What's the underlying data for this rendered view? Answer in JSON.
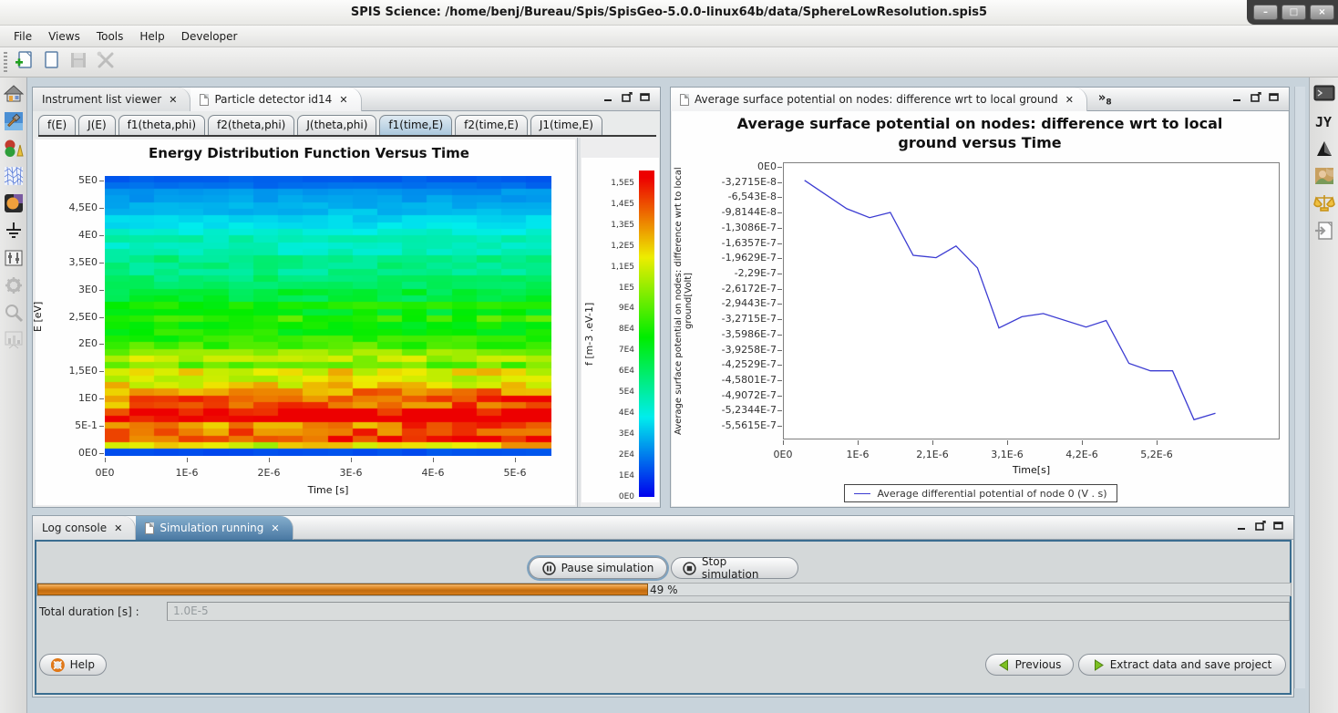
{
  "window": {
    "title": "SPIS Science: /home/benj/Bureau/Spis/SpisGeo-5.0.0-linux64b/data/SphereLowResolution.spis5"
  },
  "glyphs": {
    "minimize": "–",
    "maximize": "□",
    "close": "×",
    "tab_close": "✕",
    "overflow": "»",
    "overflow_count": "8"
  },
  "menu": {
    "items": [
      "File",
      "Views",
      "Tools",
      "Help",
      "Developer"
    ]
  },
  "main_toolbar": {
    "icons": [
      {
        "name": "new-project-icon",
        "enabled": true
      },
      {
        "name": "open-project-icon",
        "enabled": true
      },
      {
        "name": "save-project-icon",
        "enabled": false
      },
      {
        "name": "preferences-icon",
        "enabled": false
      }
    ]
  },
  "left_toolbar": {
    "icons": [
      {
        "name": "home-icon",
        "enabled": true
      },
      {
        "name": "geometry-editor-icon",
        "enabled": true
      },
      {
        "name": "groups-editor-icon",
        "enabled": true
      },
      {
        "name": "mesh-icon",
        "enabled": true
      },
      {
        "name": "materials-icon",
        "enabled": true
      },
      {
        "name": "electrical-ground-icon",
        "enabled": true
      },
      {
        "name": "global-parameters-icon",
        "enabled": true
      },
      {
        "name": "simulation-gear-icon",
        "enabled": false
      },
      {
        "name": "data-mining-icon",
        "enabled": false
      },
      {
        "name": "results-chart-icon",
        "enabled": false
      }
    ]
  },
  "right_toolbar": {
    "icons": [
      {
        "name": "console-icon",
        "enabled": true
      },
      {
        "name": "jython-icon",
        "enabled": true,
        "label": "JY"
      },
      {
        "name": "run-triangle-icon",
        "enabled": true
      },
      {
        "name": "image-viewer-icon",
        "enabled": true
      },
      {
        "name": "scales-icon",
        "enabled": true
      },
      {
        "name": "export-document-icon",
        "enabled": true
      }
    ]
  },
  "left_panel": {
    "tabs": [
      {
        "label": "Instrument list viewer",
        "active": false,
        "has_icon": false
      },
      {
        "label": "Particle detector id14",
        "active": true,
        "has_icon": true
      }
    ],
    "subtabs": [
      "f(E)",
      "J(E)",
      "f1(theta,phi)",
      "f2(theta,phi)",
      "J(theta,phi)",
      "f1(time,E)",
      "f2(time,E)",
      "J1(time,E)"
    ],
    "active_subtab": "f1(time,E)"
  },
  "right_panel": {
    "tab_label": "Average surface potential on nodes: difference wrt to local ground",
    "title_line1": "Average surface potential on nodes: difference wrt to local",
    "title_line2": "ground versus Time"
  },
  "bottom_panel": {
    "tabs": [
      {
        "label": "Log console",
        "active": false,
        "has_icon": false
      },
      {
        "label": "Simulation running",
        "active": true,
        "has_icon": true
      }
    ],
    "pause_button": "Pause simulation",
    "stop_button": "Stop simulation",
    "progress_text": "49 %",
    "progress_percent": 48.7,
    "total_duration_label": "Total duration [s] :",
    "total_duration_value": "1.0E-5",
    "help_button": "Help",
    "previous_button": "Previous",
    "extract_button": "Extract data and save project"
  },
  "colors": {
    "active_tab_blue": "#4a79a3",
    "progress_orange": "#d9781a",
    "line_blue": "#3c3cd2",
    "panel_border_blue": "#3a6d90"
  },
  "chart_data": [
    {
      "type": "heatmap",
      "title": "Energy Distribution Function Versus Time",
      "xlabel": "Time [s]",
      "ylabel": "E [eV]",
      "x_tick_labels": [
        "0E0",
        "1E-6",
        "2E-6",
        "3E-6",
        "4E-6",
        "5E-6"
      ],
      "x_tick_values": [
        0,
        1e-06,
        2e-06,
        3e-06,
        4e-06,
        5e-06
      ],
      "y_tick_labels": [
        "5E0",
        "4,5E0",
        "4E0",
        "3,5E0",
        "3E0",
        "2,5E0",
        "2E0",
        "1,5E0",
        "1E0",
        "5E-1",
        "0E0"
      ],
      "y_tick_values": [
        5,
        4.5,
        4,
        3.5,
        3,
        2.5,
        2,
        1.5,
        1,
        0.5,
        0
      ],
      "x_range": [
        0,
        5.44e-06
      ],
      "y_range": [
        0,
        5
      ],
      "columns": 18,
      "rows": 42,
      "colormap": "hsv-blue-to-red",
      "value_max": 150000,
      "energy_profile": {
        "E_eV": [
          0,
          0.07,
          0.12,
          0.2,
          0.35,
          0.5,
          0.65,
          0.8,
          1.0,
          1.2,
          1.5,
          1.8,
          2.1,
          2.4,
          2.7,
          3.0,
          3.3,
          3.6,
          3.9,
          4.2,
          4.6,
          5.0
        ],
        "f": [
          8000,
          14000,
          60000,
          125000,
          142000,
          135000,
          145000,
          128000,
          118000,
          112000,
          102000,
          94000,
          86000,
          78000,
          70000,
          62000,
          55000,
          49000,
          43000,
          34000,
          23000,
          15000
        ]
      },
      "colorbar": {
        "label": "f [m-3 .eV-1]",
        "tick_labels": [
          "1,5E5",
          "1,4E5",
          "1,3E5",
          "1,2E5",
          "1,1E5",
          "1E5",
          "9E4",
          "8E4",
          "7E4",
          "6E4",
          "5E4",
          "4E4",
          "3E4",
          "2E4",
          "1E4",
          "0E0"
        ],
        "tick_values": [
          150000,
          140000,
          130000,
          120000,
          110000,
          100000,
          90000,
          80000,
          70000,
          60000,
          50000,
          40000,
          30000,
          20000,
          10000,
          0
        ]
      }
    },
    {
      "type": "line",
      "title": "Average surface potential on nodes: difference wrt to local ground versus Time",
      "xlabel": "Time[s]",
      "ylabel": "Average surface potential on nodes: difference wrt to local ground[Volt]",
      "legend": "Average differential potential of node 0 (V . s)",
      "line_color": "#3c3cd2",
      "x_tick_labels": [
        "0E0",
        "1E-6",
        "2,1E-6",
        "3,1E-6",
        "4,2E-6",
        "5,2E-6"
      ],
      "x_tick_values": [
        0,
        1.046e-06,
        2.092e-06,
        3.138e-06,
        4.184e-06,
        5.23e-06
      ],
      "y_tick_labels": [
        "0E0",
        "-3,2715E-8",
        "-6,543E-8",
        "-9,8144E-8",
        "-1,3086E-7",
        "-1,6357E-7",
        "-1,9629E-7",
        "-2,29E-7",
        "-2,6172E-7",
        "-2,9443E-7",
        "-3,2715E-7",
        "-3,5986E-7",
        "-3,9258E-7",
        "-4,2529E-7",
        "-4,5801E-7",
        "-4,9072E-7",
        "-5,2344E-7",
        "-5,5615E-7"
      ],
      "y_tick_step": 3.2715e-08,
      "x_range": [
        0,
        6.95e-06
      ],
      "series": [
        {
          "name": "Average differential potential of node 0 (V . s)",
          "x": [
            2.9e-07,
            8.8e-07,
            1.2e-06,
            1.49e-06,
            1.81e-06,
            2.13e-06,
            2.41e-06,
            2.71e-06,
            3.01e-06,
            3.33e-06,
            3.63e-06,
            4.23e-06,
            4.51e-06,
            4.83e-06,
            5.13e-06,
            5.44e-06,
            5.74e-06,
            6.04e-06
          ],
          "y": [
            -2.7e-08,
            -8.8e-08,
            -1.07e-07,
            -9.6e-08,
            -1.88e-07,
            -1.93e-07,
            -1.68e-07,
            -2.15e-07,
            -3.44e-07,
            -3.2e-07,
            -3.13e-07,
            -3.42e-07,
            -3.28e-07,
            -4.2e-07,
            -4.36e-07,
            -4.36e-07,
            -5.41e-07,
            -5.27e-07
          ]
        }
      ]
    }
  ]
}
